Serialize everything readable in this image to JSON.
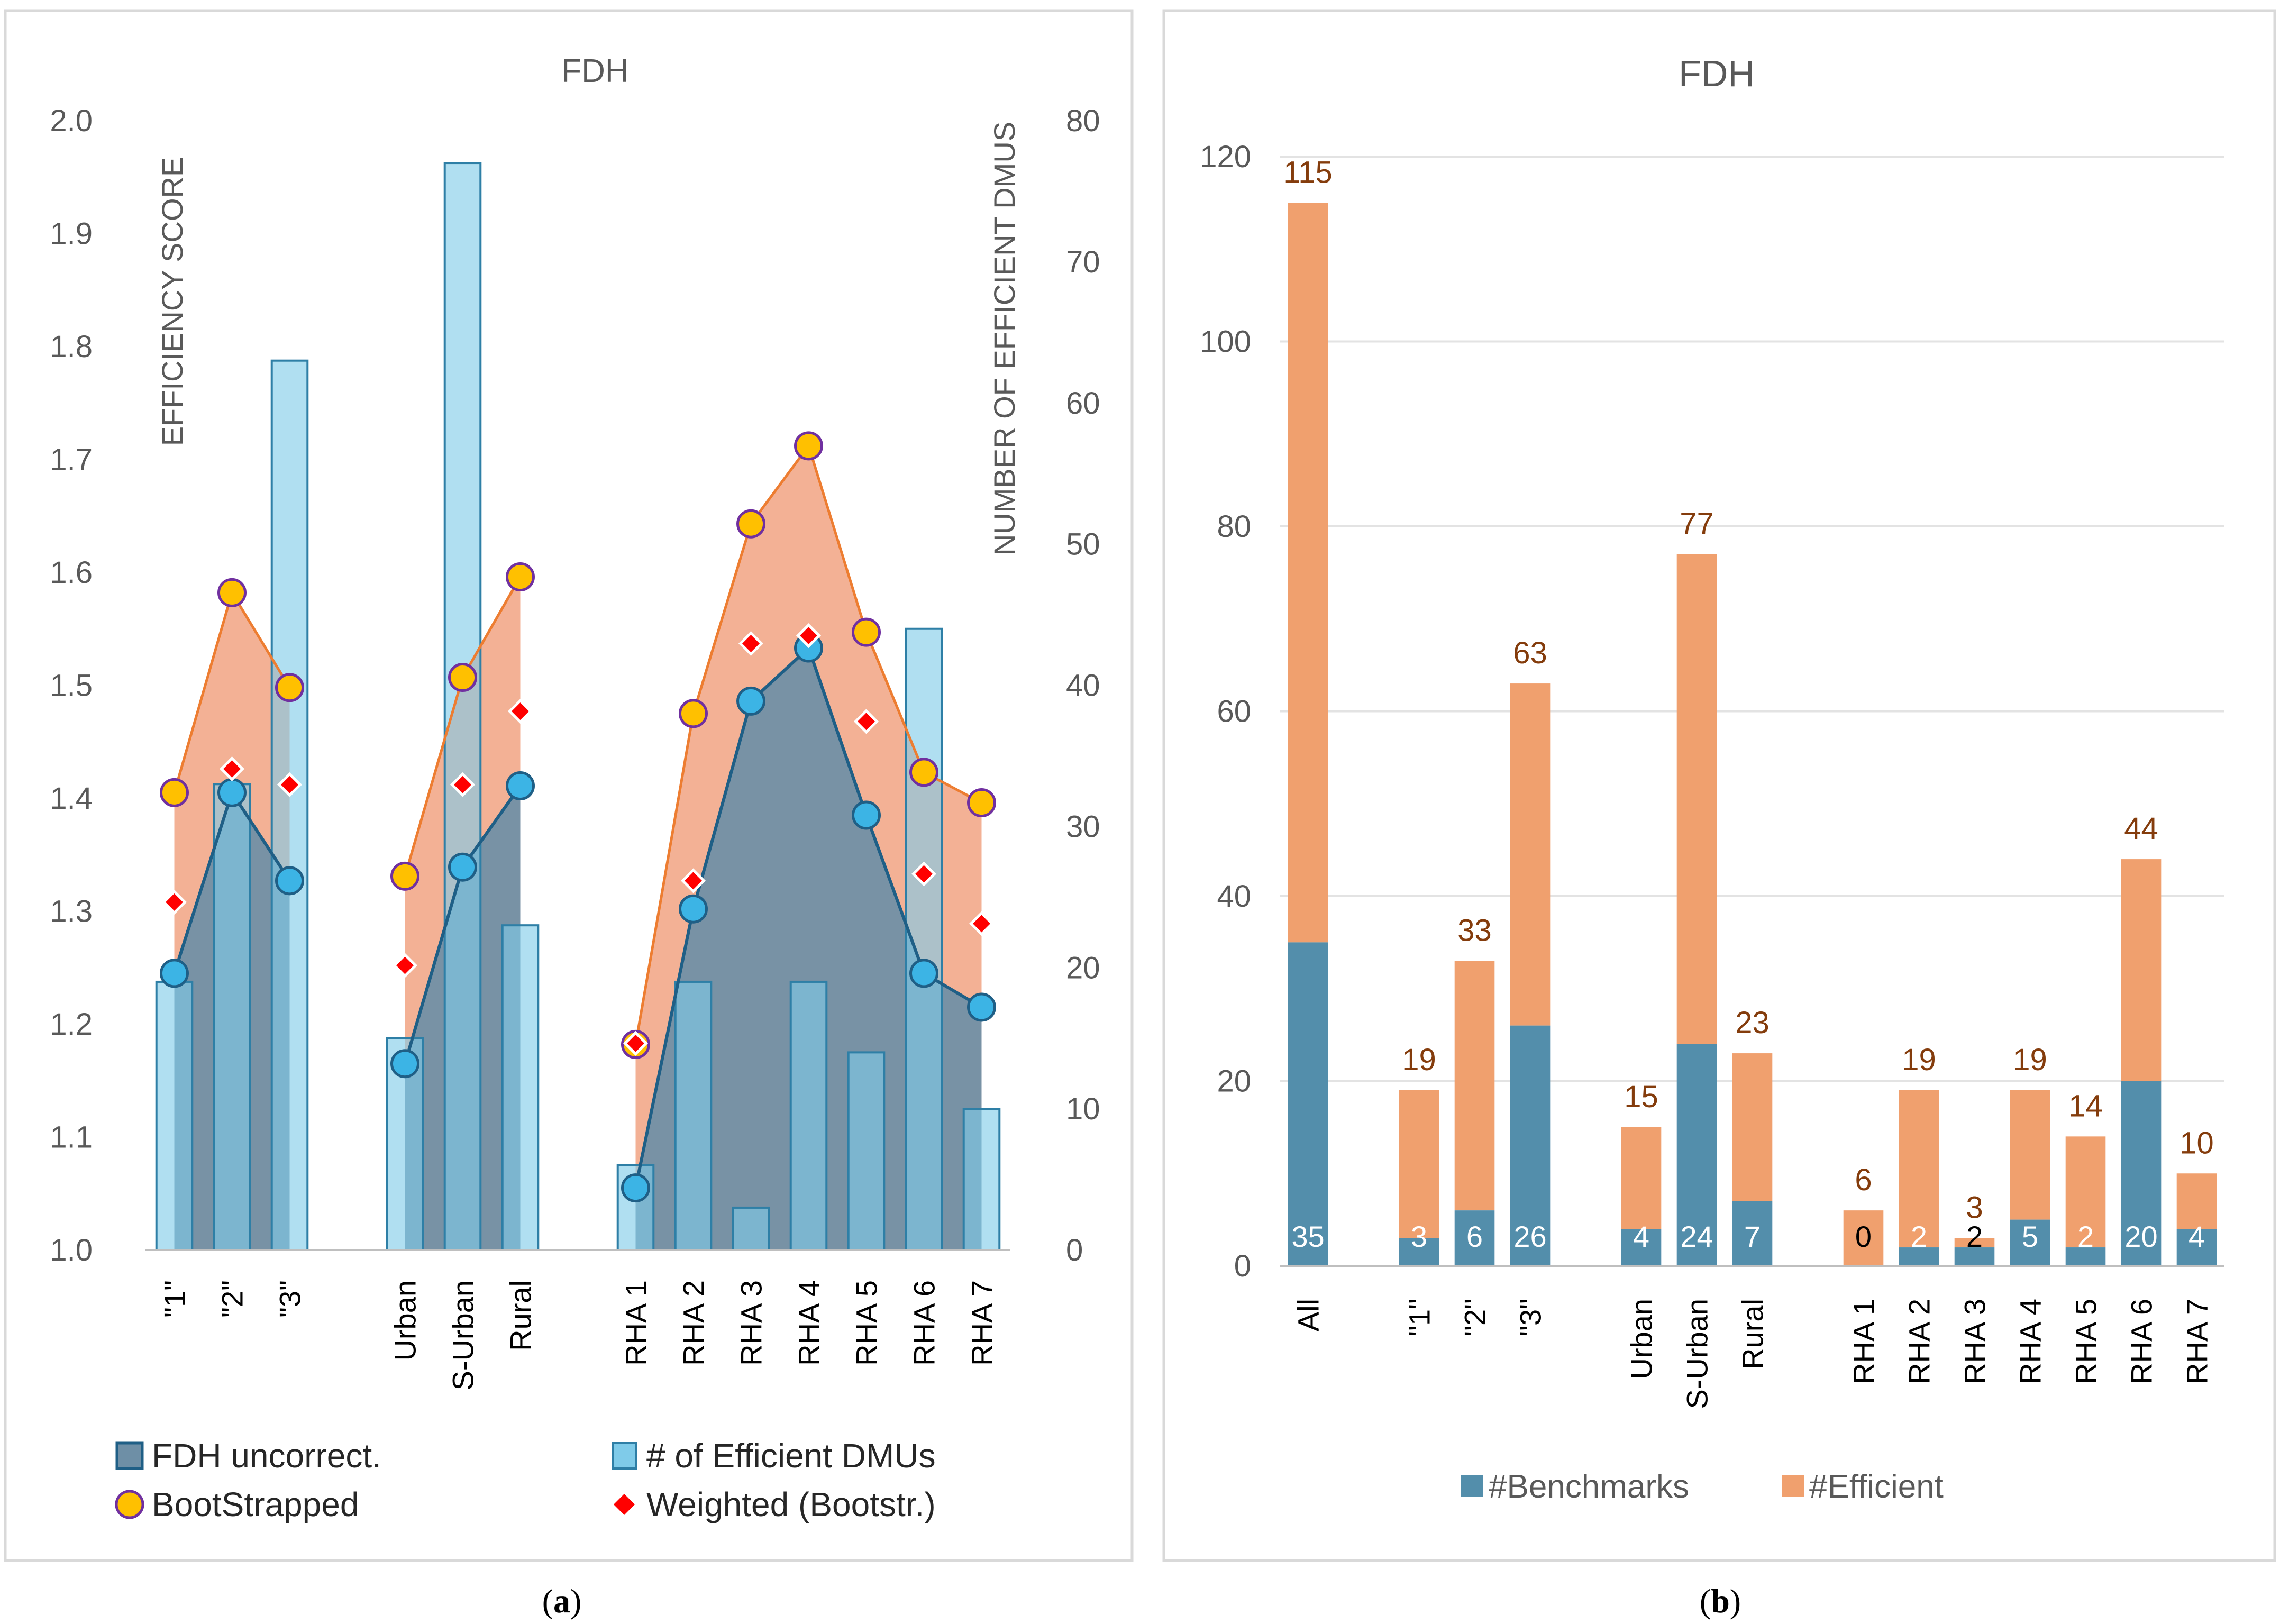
{
  "colors": {
    "panel_border": "#d9d9d9",
    "grid": "#e3e3e3",
    "axis_text": "#595959",
    "uncorrected_fill": "#6e8fa6",
    "uncorrected_line": "#1f5f86",
    "uncorrected_marker": "#3cb4e5",
    "bootstrapped_fill": "#f2a98a",
    "bootstrapped_line": "#ed7d31",
    "bootstrapped_marker": "#ffc000",
    "bootstrapped_marker_edge": "#7030a0",
    "weighted_marker": "#ff0000",
    "dmu_bar_fill": "#7fcbe9",
    "dmu_bar_edge": "#2e7fa6",
    "benchmarks": "#538eab",
    "efficient": "#f0a06e",
    "total_label": "#843c0c"
  },
  "chart_data": [
    {
      "panel": "a",
      "panel_label": "a",
      "type": "line",
      "title": "FDH",
      "categories": [
        "\"1\"",
        "\"2\"",
        "\"3\"",
        "Urban",
        "S-Urban",
        "Rural",
        "RHA 1",
        "RHA 2",
        "RHA 3",
        "RHA 4",
        "RHA 5",
        "RHA 6",
        "RHA 7"
      ],
      "groups": [
        [
          0,
          1,
          2
        ],
        [
          3,
          4,
          5
        ],
        [
          6,
          7,
          8,
          9,
          10,
          11,
          12
        ]
      ],
      "ylabel": "EFFICIENCY SCORE",
      "ylim": [
        1.0,
        2.0
      ],
      "yticks": [
        "1.0",
        "1.1",
        "1.2",
        "1.3",
        "1.4",
        "1.5",
        "1.6",
        "1.7",
        "1.8",
        "1.9",
        "2.0"
      ],
      "y2label": "NUMBER OF EFFICIENT DMUS",
      "y2lim": [
        0,
        80
      ],
      "y2ticks": [
        "0",
        "10",
        "20",
        "30",
        "40",
        "50",
        "60",
        "70",
        "80"
      ],
      "series": [
        {
          "name": "FDH uncorrect.",
          "kind": "area-line",
          "axis": "left",
          "values": [
            1.245,
            1.405,
            1.327,
            1.165,
            1.339,
            1.411,
            1.055,
            1.302,
            1.486,
            1.533,
            1.385,
            1.245,
            1.215
          ]
        },
        {
          "name": "BootStrapped",
          "kind": "area-line",
          "axis": "left",
          "values": [
            1.405,
            1.582,
            1.498,
            1.331,
            1.507,
            1.596,
            1.182,
            1.475,
            1.643,
            1.712,
            1.547,
            1.423,
            1.396
          ]
        },
        {
          "name": "Weighted (Bootstr.)",
          "kind": "marker",
          "axis": "left",
          "values": [
            1.308,
            1.426,
            1.412,
            1.252,
            1.412,
            1.477,
            1.183,
            1.327,
            1.537,
            1.544,
            1.468,
            1.333,
            1.289
          ]
        },
        {
          "name": "# of Efficient DMUs",
          "kind": "bar",
          "axis": "right",
          "values": [
            19,
            33,
            63,
            15,
            77,
            23,
            6,
            19,
            3,
            19,
            14,
            44,
            10
          ]
        }
      ],
      "legend": [
        {
          "label": "FDH uncorrect.",
          "symbol": "area"
        },
        {
          "label": "# of Efficient DMUs",
          "symbol": "bar"
        },
        {
          "label": "BootStrapped",
          "symbol": "circle"
        },
        {
          "label": "Weighted (Bootstr.)",
          "symbol": "diamond"
        }
      ]
    },
    {
      "panel": "b",
      "panel_label": "b",
      "type": "bar",
      "stacked": true,
      "title": "FDH",
      "categories": [
        "All",
        "\"1\"",
        "\"2\"",
        "\"3\"",
        "Urban",
        "S-Urban",
        "Rural",
        "RHA 1",
        "RHA 2",
        "RHA 3",
        "RHA 4",
        "RHA 5",
        "RHA 6",
        "RHA 7"
      ],
      "groups": [
        [
          0
        ],
        [
          1,
          2,
          3
        ],
        [
          4,
          5,
          6
        ],
        [
          7,
          8,
          9,
          10,
          11,
          12,
          13
        ]
      ],
      "ylim": [
        0,
        120
      ],
      "yticks": [
        "0",
        "20",
        "40",
        "60",
        "80",
        "100",
        "120"
      ],
      "benchmark_values": [
        35,
        3,
        6,
        26,
        4,
        24,
        7,
        0,
        2,
        2,
        5,
        2,
        20,
        4
      ],
      "efficient_totals": [
        115,
        19,
        33,
        63,
        15,
        77,
        23,
        6,
        19,
        3,
        19,
        14,
        44,
        10
      ],
      "benchmark_labels": [
        "35",
        "3",
        "6",
        "26",
        "4",
        "24",
        "7",
        "0",
        "2",
        "2",
        "5",
        "2",
        "20",
        "4"
      ],
      "total_labels": [
        "115",
        "19",
        "33",
        "63",
        "15",
        "77",
        "23",
        "6",
        "19",
        "3",
        "19",
        "14",
        "44",
        "10"
      ],
      "legend": [
        {
          "label": "#Benchmarks",
          "series": "benchmarks"
        },
        {
          "label": "#Efficient",
          "series": "efficient"
        }
      ]
    }
  ]
}
